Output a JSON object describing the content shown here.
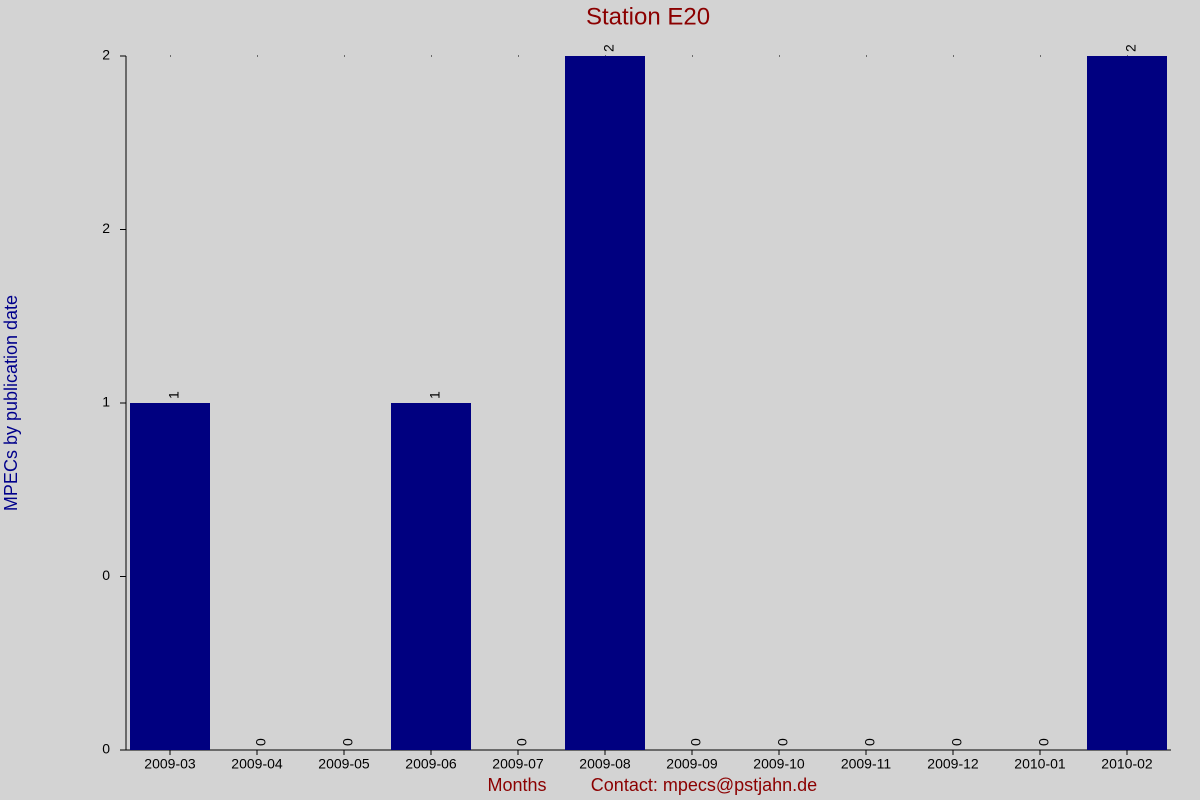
{
  "chart_data": {
    "type": "bar",
    "title": "Station E20",
    "y_label": "MPECs by publication date",
    "x_label": "Months",
    "contact": "Contact: mpecs@pstjahn.de",
    "categories": [
      "2009-03",
      "2009-04",
      "2009-05",
      "2009-06",
      "2009-07",
      "2009-08",
      "2009-09",
      "2009-10",
      "2009-11",
      "2009-12",
      "2010-01",
      "2010-02"
    ],
    "values": [
      1,
      0,
      0,
      1,
      0,
      2,
      0,
      0,
      0,
      0,
      0,
      2
    ],
    "color": "#000080",
    "ylim": [
      0,
      2
    ],
    "yticks": [
      0,
      {
        "value": 0.5,
        "label": "0"
      },
      1,
      {
        "value": 1.5,
        "label": "2"
      },
      2
    ]
  }
}
